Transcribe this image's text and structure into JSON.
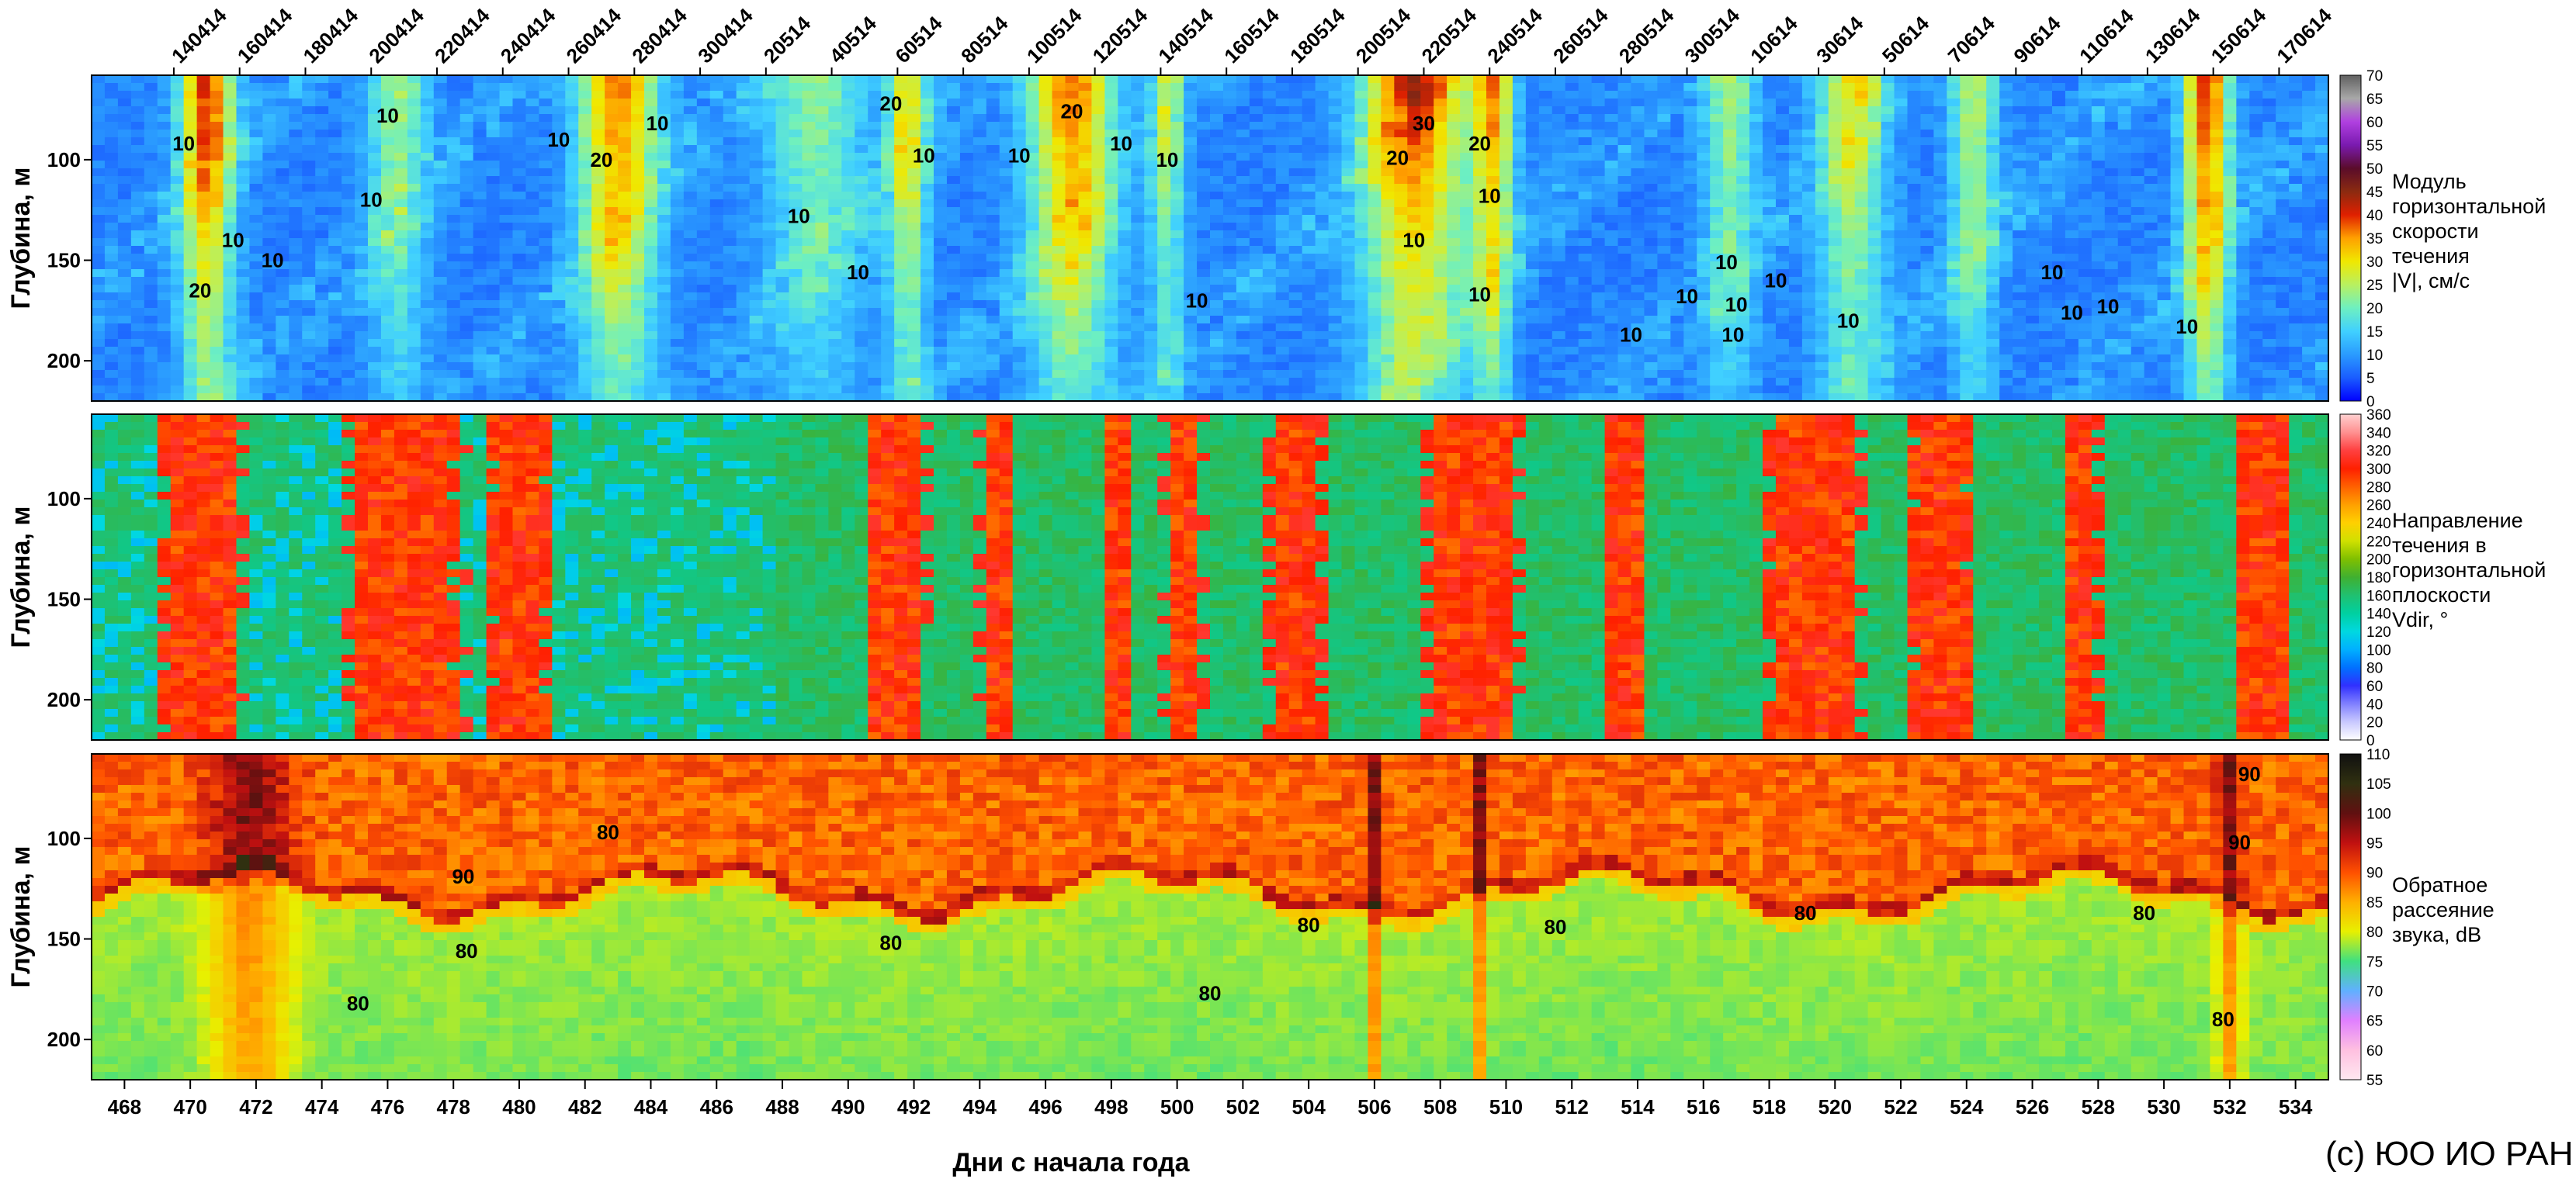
{
  "chart_data": {
    "type": "heatmap",
    "copyright": "(с) ЮО ИО РАН, 2014",
    "xlabel": "Дни с начала года",
    "xlim": [
      467,
      535
    ],
    "x_ticks": [
      "468",
      "470",
      "472",
      "474",
      "476",
      "478",
      "480",
      "482",
      "484",
      "486",
      "488",
      "490",
      "492",
      "494",
      "496",
      "498",
      "500",
      "502",
      "504",
      "506",
      "508",
      "510",
      "512",
      "514",
      "516",
      "518",
      "520",
      "522",
      "524",
      "526",
      "528",
      "530",
      "532",
      "534"
    ],
    "date_ticks": [
      "140414",
      "160414",
      "180414",
      "200414",
      "220414",
      "240414",
      "260414",
      "280414",
      "300414",
      "20514",
      "40514",
      "60514",
      "80514",
      "100514",
      "120514",
      "140514",
      "160514",
      "180514",
      "200514",
      "220514",
      "240514",
      "260514",
      "280514",
      "300514",
      "10614",
      "30614",
      "50614",
      "70614",
      "90614",
      "110614",
      "130614",
      "150614",
      "170614"
    ],
    "date_tick_days": [
      469.5,
      471.5,
      473.5,
      475.5,
      477.5,
      479.5,
      481.5,
      483.5,
      485.5,
      487.5,
      489.5,
      491.5,
      493.5,
      495.5,
      497.5,
      499.5,
      501.5,
      503.5,
      505.5,
      507.5,
      509.5,
      511.5,
      513.5,
      515.5,
      517.5,
      519.5,
      521.5,
      523.5,
      525.5,
      527.5,
      529.5,
      531.5,
      533.5
    ],
    "panels": [
      {
        "name": "speed",
        "ylabel": "Глубина, м",
        "ylim": [
          58,
          220
        ],
        "y_ticks": [
          "100",
          "150",
          "200"
        ],
        "y_tick_values": [
          100,
          150,
          200
        ],
        "colorbar_title": [
          "Модуль",
          "горизонтальной",
          "скорости",
          "течения",
          "|V|, см/с"
        ],
        "colorbar_ticks": [
          "0",
          "5",
          "10",
          "15",
          "20",
          "25",
          "30",
          "35",
          "40",
          "45",
          "50",
          "55",
          "60",
          "65",
          "70"
        ],
        "colorbar_range": [
          0,
          70
        ],
        "colorbar_colors": [
          "#0000ff",
          "#1a5cff",
          "#2a9bff",
          "#40d0ff",
          "#6ef0c0",
          "#b8f060",
          "#f0e800",
          "#ffa000",
          "#e02000",
          "#8b2a10",
          "#5a0c2a",
          "#7a1ab0",
          "#b040e0",
          "#a8a8a8",
          "#606060"
        ],
        "contour_labels": [
          {
            "x": 469.8,
            "y": 92,
            "text": "10"
          },
          {
            "x": 470.3,
            "y": 165,
            "text": "20"
          },
          {
            "x": 471.3,
            "y": 140,
            "text": "10"
          },
          {
            "x": 472.5,
            "y": 150,
            "text": "10"
          },
          {
            "x": 475.5,
            "y": 120,
            "text": "10"
          },
          {
            "x": 476.0,
            "y": 78,
            "text": "10"
          },
          {
            "x": 481.2,
            "y": 90,
            "text": "10"
          },
          {
            "x": 482.5,
            "y": 100,
            "text": "20"
          },
          {
            "x": 484.2,
            "y": 82,
            "text": "10"
          },
          {
            "x": 488.5,
            "y": 128,
            "text": "10"
          },
          {
            "x": 490.3,
            "y": 156,
            "text": "10"
          },
          {
            "x": 491.3,
            "y": 72,
            "text": "20"
          },
          {
            "x": 492.3,
            "y": 98,
            "text": "10"
          },
          {
            "x": 495.2,
            "y": 98,
            "text": "10"
          },
          {
            "x": 496.8,
            "y": 76,
            "text": "20"
          },
          {
            "x": 498.3,
            "y": 92,
            "text": "10"
          },
          {
            "x": 499.7,
            "y": 100,
            "text": "10"
          },
          {
            "x": 500.6,
            "y": 170,
            "text": "10"
          },
          {
            "x": 506.7,
            "y": 99,
            "text": "20"
          },
          {
            "x": 507.5,
            "y": 82,
            "text": "30"
          },
          {
            "x": 507.2,
            "y": 140,
            "text": "10"
          },
          {
            "x": 509.2,
            "y": 92,
            "text": "20"
          },
          {
            "x": 509.5,
            "y": 118,
            "text": "10"
          },
          {
            "x": 509.2,
            "y": 167,
            "text": "10"
          },
          {
            "x": 513.8,
            "y": 187,
            "text": "10"
          },
          {
            "x": 515.5,
            "y": 168,
            "text": "10"
          },
          {
            "x": 516.7,
            "y": 151,
            "text": "10"
          },
          {
            "x": 517.0,
            "y": 172,
            "text": "10"
          },
          {
            "x": 518.2,
            "y": 160,
            "text": "10"
          },
          {
            "x": 516.9,
            "y": 187,
            "text": "10"
          },
          {
            "x": 520.4,
            "y": 180,
            "text": "10"
          },
          {
            "x": 526.6,
            "y": 156,
            "text": "10"
          },
          {
            "x": 527.2,
            "y": 176,
            "text": "10"
          },
          {
            "x": 528.3,
            "y": 173,
            "text": "10"
          },
          {
            "x": 530.7,
            "y": 183,
            "text": "10"
          }
        ]
      },
      {
        "name": "direction",
        "ylabel": "Глубина, м",
        "ylim": [
          58,
          220
        ],
        "y_ticks": [
          "100",
          "150",
          "200"
        ],
        "y_tick_values": [
          100,
          150,
          200
        ],
        "colorbar_title": [
          "Направление",
          "течения в",
          "горизонтальной",
          "плоскости",
          "Vdir, °"
        ],
        "colorbar_ticks": [
          "0",
          "20",
          "40",
          "60",
          "80",
          "100",
          "120",
          "140",
          "160",
          "180",
          "200",
          "220",
          "240",
          "260",
          "280",
          "300",
          "320",
          "340",
          "360"
        ],
        "colorbar_range": [
          0,
          360
        ],
        "colorbar_colors": [
          "#ffffff",
          "#c8c8ff",
          "#8080ff",
          "#3030ff",
          "#0070ff",
          "#00b0ff",
          "#00d8e0",
          "#00d0a0",
          "#20c070",
          "#40b030",
          "#80c000",
          "#d0e000",
          "#ffd000",
          "#ffa000",
          "#ff6000",
          "#ff2000",
          "#ff4040",
          "#ff9090",
          "#ffd0d0"
        ],
        "contour_labels": []
      },
      {
        "name": "backscatter",
        "ylabel": "Глубина, м",
        "ylim": [
          58,
          220
        ],
        "y_ticks": [
          "100",
          "150",
          "200"
        ],
        "y_tick_values": [
          100,
          150,
          200
        ],
        "colorbar_title": [
          "Обратное",
          "рассеяние",
          "звука, dB"
        ],
        "colorbar_ticks": [
          "55",
          "60",
          "65",
          "70",
          "75",
          "80",
          "85",
          "90",
          "95",
          "100",
          "105",
          "110"
        ],
        "colorbar_range": [
          55,
          110
        ],
        "colorbar_colors": [
          "#ffe8f0",
          "#ffc0e0",
          "#e080ff",
          "#60b0ff",
          "#40e080",
          "#e8f000",
          "#ffb000",
          "#ff5000",
          "#c01010",
          "#601010",
          "#303010",
          "#101010"
        ],
        "contour_labels": [
          {
            "x": 482.7,
            "y": 97,
            "text": "80"
          },
          {
            "x": 478.3,
            "y": 119,
            "text": "90"
          },
          {
            "x": 478.4,
            "y": 156,
            "text": "80"
          },
          {
            "x": 475.1,
            "y": 182,
            "text": "80"
          },
          {
            "x": 491.3,
            "y": 152,
            "text": "80"
          },
          {
            "x": 501.0,
            "y": 177,
            "text": "80"
          },
          {
            "x": 504.0,
            "y": 143,
            "text": "80"
          },
          {
            "x": 511.5,
            "y": 144,
            "text": "80"
          },
          {
            "x": 519.1,
            "y": 137,
            "text": "80"
          },
          {
            "x": 529.4,
            "y": 137,
            "text": "80"
          },
          {
            "x": 532.6,
            "y": 68,
            "text": "90"
          },
          {
            "x": 532.3,
            "y": 102,
            "text": "90"
          },
          {
            "x": 531.8,
            "y": 190,
            "text": "80"
          }
        ]
      }
    ]
  }
}
